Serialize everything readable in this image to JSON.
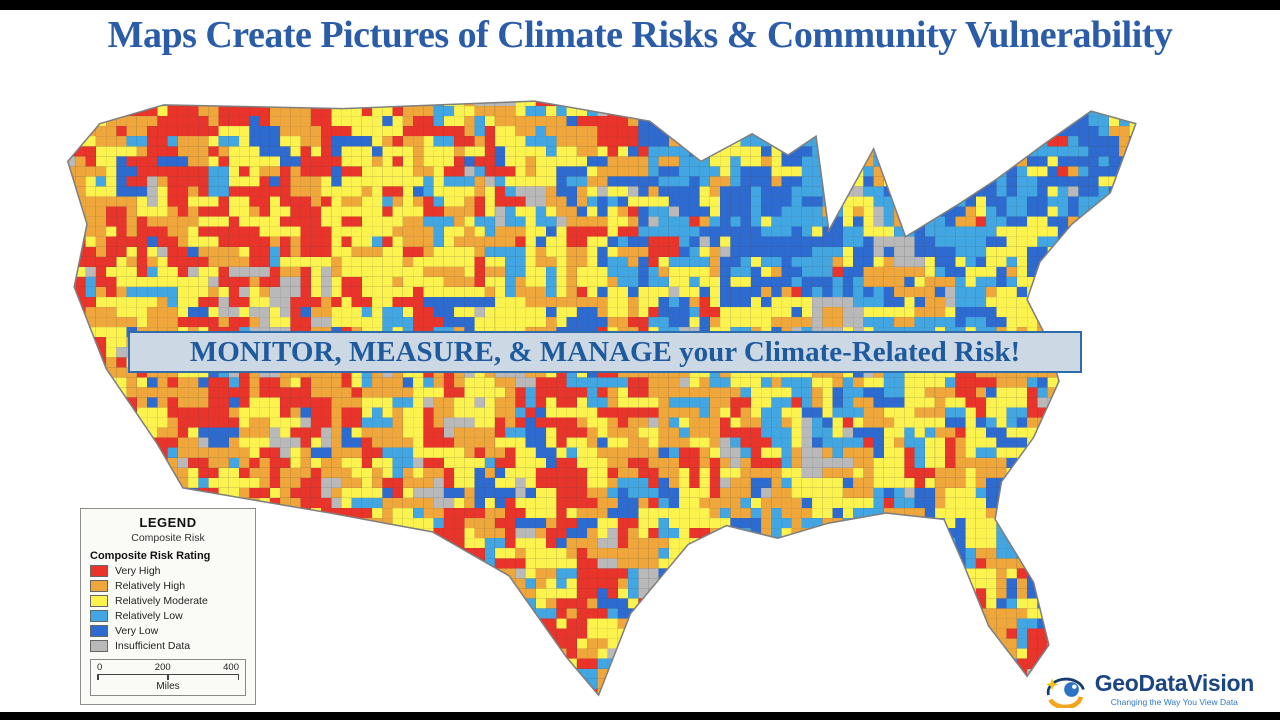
{
  "top_title": "Maps Create Pictures of Climate Risks & Community Vulnerability",
  "banner": {
    "text": "MONITOR, MEASURE, & MANAGE your Climate-Related Risk!"
  },
  "legend": {
    "title": "LEGEND",
    "subtitle": "Composite Risk",
    "section_header": "Composite Risk Rating",
    "items": [
      {
        "label": "Very High",
        "color": "#e8342a"
      },
      {
        "label": "Relatively High",
        "color": "#efa63b"
      },
      {
        "label": "Relatively Moderate",
        "color": "#fcf34f"
      },
      {
        "label": "Relatively Low",
        "color": "#41a6e1"
      },
      {
        "label": "Very Low",
        "color": "#2e6bd0"
      },
      {
        "label": "Insufficient Data",
        "color": "#b9b9b9"
      }
    ],
    "scale": {
      "tick_labels": [
        "0",
        "200",
        "400"
      ],
      "unit": "Miles"
    }
  },
  "logo": {
    "name": "GeoDataVision",
    "tagline": "Changing the Way You View Data"
  },
  "map": {
    "description": "Choropleth map of continental United States counties colored by composite climate risk rating",
    "outline_color": "#7f7f7f"
  }
}
